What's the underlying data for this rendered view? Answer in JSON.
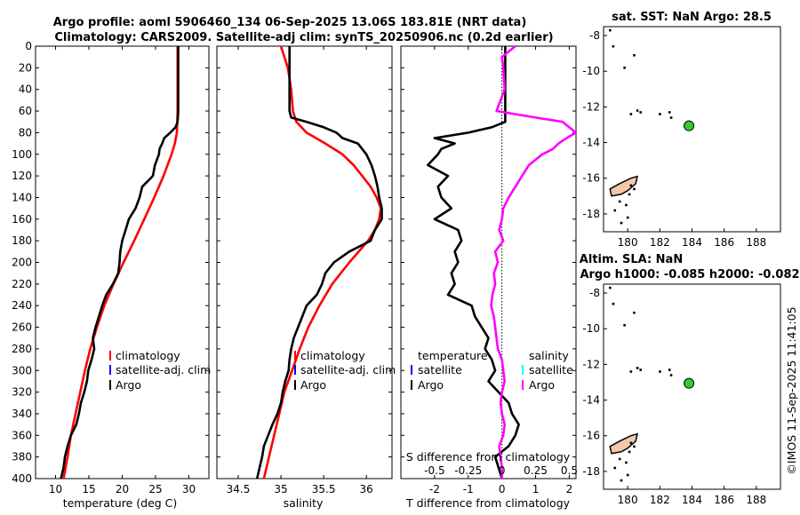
{
  "header": {
    "title_line1": "Argo profile: aoml 5906460_134 06-Sep-2025 13.06S 183.81E (NRT data)",
    "title_line2": "Climatology: CARS2009. Satellite-adj clim: synTS_20250906.nc (0.2d earlier)"
  },
  "timestamp": "©IMOS 11-Sep-2025 11:41:05",
  "colors": {
    "climatology": "#ff0000",
    "satellite_clim": "#0000ff",
    "argo": "#000000",
    "salinity_diff": "#ff00ff",
    "salinity_satellite": "#00ffff",
    "station_marker": "#33cc33",
    "land": "#f4c7a8"
  },
  "chart_data": [
    {
      "id": "temperature",
      "type": "line",
      "xlabel": "temperature (deg C)",
      "ylabel": "depth",
      "xlim": [
        7,
        33
      ],
      "ylim": [
        400,
        0
      ],
      "xticks": [
        10,
        15,
        20,
        25,
        30
      ],
      "yticks": [
        0,
        20,
        40,
        60,
        80,
        100,
        120,
        140,
        160,
        180,
        200,
        220,
        240,
        260,
        280,
        300,
        320,
        340,
        360,
        380,
        400
      ],
      "legend": [
        "climatology",
        "satellite-adj. clim",
        "Argo"
      ],
      "series": [
        {
          "name": "climatology",
          "color": "#ff0000",
          "depth": [
            0,
            20,
            40,
            60,
            80,
            90,
            100,
            120,
            140,
            160,
            180,
            200,
            220,
            240,
            260,
            280,
            300,
            320,
            340,
            360,
            380,
            400
          ],
          "values": [
            28.3,
            28.3,
            28.3,
            28.3,
            28.2,
            27.9,
            27.4,
            26.2,
            24.8,
            23.3,
            21.8,
            20.2,
            18.7,
            17.3,
            16.2,
            15.2,
            14.4,
            13.7,
            13.0,
            12.3,
            11.8,
            11.2
          ]
        },
        {
          "name": "Argo",
          "color": "#000000",
          "depth": [
            0,
            20,
            40,
            60,
            70,
            75,
            80,
            85,
            90,
            95,
            100,
            110,
            120,
            130,
            140,
            150,
            160,
            170,
            180,
            190,
            200,
            210,
            220,
            230,
            240,
            250,
            260,
            270,
            280,
            290,
            300,
            310,
            320,
            330,
            340,
            350,
            360,
            370,
            380,
            390,
            400
          ],
          "values": [
            28.4,
            28.4,
            28.4,
            28.4,
            28.3,
            28.0,
            27.2,
            26.3,
            26.0,
            25.6,
            25.5,
            24.9,
            24.6,
            23.0,
            22.6,
            22.0,
            21.0,
            20.5,
            20.0,
            19.7,
            19.6,
            19.4,
            18.6,
            17.6,
            17.0,
            16.5,
            16.0,
            15.6,
            15.8,
            15.4,
            14.9,
            14.7,
            14.3,
            13.8,
            13.5,
            13.1,
            12.3,
            11.8,
            11.4,
            11.2,
            10.8
          ]
        }
      ]
    },
    {
      "id": "salinity",
      "type": "line",
      "xlabel": "salinity",
      "xlim": [
        34.25,
        36.3
      ],
      "ylim": [
        400,
        0
      ],
      "xticks": [
        34.5,
        35,
        35.5,
        36
      ],
      "legend": [
        "climatology",
        "satellite-adj. clim",
        "Argo"
      ],
      "series": [
        {
          "name": "climatology",
          "color": "#ff0000",
          "depth": [
            0,
            20,
            40,
            60,
            70,
            80,
            90,
            100,
            110,
            120,
            130,
            140,
            150,
            160,
            170,
            180,
            200,
            220,
            240,
            260,
            280,
            300,
            320,
            340,
            360,
            380,
            400
          ],
          "values": [
            35.0,
            35.08,
            35.12,
            35.14,
            35.18,
            35.3,
            35.52,
            35.72,
            35.85,
            35.95,
            36.05,
            36.12,
            36.17,
            36.15,
            36.1,
            36.02,
            35.8,
            35.6,
            35.45,
            35.32,
            35.22,
            35.13,
            35.04,
            34.98,
            34.92,
            34.86,
            34.8
          ]
        },
        {
          "name": "Argo",
          "color": "#000000",
          "depth": [
            0,
            20,
            40,
            60,
            66,
            70,
            75,
            80,
            85,
            90,
            95,
            100,
            110,
            120,
            130,
            140,
            150,
            160,
            170,
            180,
            190,
            200,
            210,
            220,
            230,
            240,
            250,
            260,
            270,
            280,
            290,
            300,
            310,
            320,
            330,
            340,
            350,
            360,
            370,
            380,
            390,
            400
          ],
          "values": [
            35.1,
            35.1,
            35.1,
            35.1,
            35.12,
            35.3,
            35.5,
            35.65,
            35.72,
            35.9,
            35.95,
            36.0,
            36.06,
            36.1,
            36.13,
            36.15,
            36.18,
            36.18,
            36.1,
            36.05,
            35.8,
            35.62,
            35.52,
            35.48,
            35.42,
            35.3,
            35.25,
            35.2,
            35.15,
            35.12,
            35.1,
            35.09,
            35.05,
            35.02,
            35.0,
            34.96,
            34.9,
            34.85,
            34.8,
            34.78,
            34.75,
            34.72
          ]
        }
      ]
    },
    {
      "id": "difference",
      "type": "line",
      "xlabel": "T difference from climatology",
      "x2label": "S difference from climatology",
      "xlim": [
        -3,
        2.2
      ],
      "ylim": [
        400,
        0
      ],
      "xticks": [
        -2,
        -1,
        0,
        1,
        2
      ],
      "x2ticks": [
        "-0.5",
        "-0.25",
        "0",
        "0.25",
        "0.5"
      ],
      "legend_temperature": {
        "title": "temperature",
        "items": [
          "satellite",
          "Argo"
        ]
      },
      "legend_salinity": {
        "title": "salinity",
        "items": [
          "satellite",
          "Argo"
        ]
      },
      "series": [
        {
          "name": "T Argo - clim",
          "color": "#000000",
          "depth": [
            0,
            60,
            70,
            75,
            80,
            85,
            90,
            95,
            100,
            110,
            120,
            130,
            140,
            150,
            160,
            170,
            180,
            190,
            200,
            210,
            220,
            230,
            240,
            250,
            260,
            270,
            280,
            290,
            300,
            310,
            320,
            330,
            340,
            350,
            360,
            370,
            380,
            390,
            400
          ],
          "values": [
            0.1,
            0.1,
            0.1,
            -0.3,
            -1.0,
            -2.0,
            -1.4,
            -1.8,
            -1.9,
            -2.2,
            -1.6,
            -1.9,
            -1.8,
            -1.5,
            -2.0,
            -1.3,
            -1.2,
            -1.4,
            -1.3,
            -1.5,
            -1.4,
            -1.6,
            -0.9,
            -0.8,
            -0.6,
            -0.4,
            -0.5,
            -0.3,
            -0.2,
            -0.4,
            -0.1,
            0.2,
            0.3,
            0.5,
            0.4,
            0.2,
            -0.2,
            -0.1,
            0.0
          ]
        },
        {
          "name": "S Argo - clim",
          "color": "#ff00ff",
          "depth": [
            0,
            10,
            20,
            40,
            60,
            66,
            70,
            75,
            80,
            85,
            90,
            95,
            100,
            110,
            120,
            130,
            140,
            150,
            160,
            170,
            180,
            190,
            200,
            210,
            220,
            230,
            240,
            250,
            260,
            270,
            280,
            290,
            300,
            310,
            320,
            330,
            340,
            350,
            360,
            370,
            380,
            390,
            400
          ],
          "values": [
            0.1,
            0.0,
            0.01,
            0.02,
            -0.04,
            0.25,
            0.45,
            0.5,
            0.55,
            0.48,
            0.42,
            0.38,
            0.3,
            0.2,
            0.15,
            0.1,
            0.05,
            0.01,
            0.0,
            -0.02,
            0.01,
            -0.05,
            -0.03,
            -0.06,
            -0.05,
            -0.07,
            -0.08,
            -0.06,
            -0.05,
            -0.04,
            -0.03,
            0.0,
            0.01,
            0.02,
            0.0,
            -0.01,
            0.0,
            0.02,
            0.01,
            -0.02,
            -0.01,
            0.0,
            0.0
          ]
        }
      ]
    }
  ],
  "maps": {
    "sst": {
      "title": "sat. SST: NaN Argo: 28.5",
      "xticks": [
        180,
        182,
        184,
        186,
        188
      ],
      "yticks": [
        -8,
        -10,
        -12,
        -14,
        -16,
        -18
      ],
      "xlim": [
        178.5,
        189.5
      ],
      "ylim": [
        -19,
        -7.5
      ],
      "station": {
        "lon": 183.81,
        "lat": -13.06
      }
    },
    "sla": {
      "title_line1": "Altim. SLA: NaN",
      "title_line2": "Argo h1000: -0.085 h2000: -0.082",
      "xticks": [
        180,
        182,
        184,
        186,
        188
      ],
      "yticks": [
        -8,
        -10,
        -12,
        -14,
        -16,
        -18
      ],
      "xlim": [
        178.5,
        189.5
      ],
      "ylim": [
        -19,
        -7.5
      ],
      "station": {
        "lon": 183.81,
        "lat": -13.06
      }
    }
  }
}
